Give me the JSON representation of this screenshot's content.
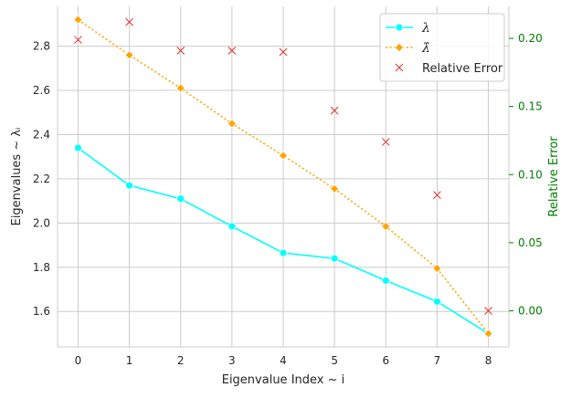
{
  "chart_data": {
    "type": "line",
    "x": [
      0,
      1,
      2,
      3,
      4,
      5,
      6,
      7,
      8
    ],
    "xlabel": "Eigenvalue Index ~ i",
    "ylabel": "Eigenvalues ~ λᵢ",
    "y2label": "Relative Error",
    "xlim": [
      -0.4,
      8.4
    ],
    "ylim": [
      1.44,
      2.98
    ],
    "y2lim": [
      -0.0265,
      0.2235
    ],
    "xticks": [
      0,
      1,
      2,
      3,
      4,
      5,
      6,
      7,
      8
    ],
    "yticks": [
      1.6,
      1.8,
      2.0,
      2.2,
      2.4,
      2.6,
      2.8
    ],
    "yticklabels": [
      "1.6",
      "1.8",
      "2.0",
      "2.2",
      "2.4",
      "2.6",
      "2.8"
    ],
    "y2ticks": [
      0.0,
      0.05,
      0.1,
      0.15,
      0.2
    ],
    "y2ticklabels": [
      "0.00",
      "0.05",
      "0.10",
      "0.15",
      "0.20"
    ],
    "grid": true,
    "legend_position": "top-right",
    "series": [
      {
        "name": "λ",
        "axis": "left",
        "style": "solid",
        "marker": "circle",
        "color": "#00ffff",
        "values": [
          2.34,
          2.17,
          2.11,
          1.985,
          1.865,
          1.84,
          1.74,
          1.645,
          1.5
        ]
      },
      {
        "name": "λ̂",
        "axis": "left",
        "style": "dotted",
        "marker": "diamond",
        "color": "#ffa500",
        "values": [
          2.92,
          2.76,
          2.61,
          2.45,
          2.305,
          2.155,
          1.985,
          1.795,
          1.5
        ]
      },
      {
        "name": "Relative Error",
        "axis": "right",
        "style": "none",
        "marker": "x",
        "color": "#e03030",
        "values": [
          0.199,
          0.212,
          0.191,
          0.191,
          0.19,
          0.147,
          0.124,
          0.085,
          0.0
        ]
      }
    ],
    "colors": {
      "y2_axis": "#008000",
      "grid": "#cccccc",
      "text": "#262626"
    }
  }
}
